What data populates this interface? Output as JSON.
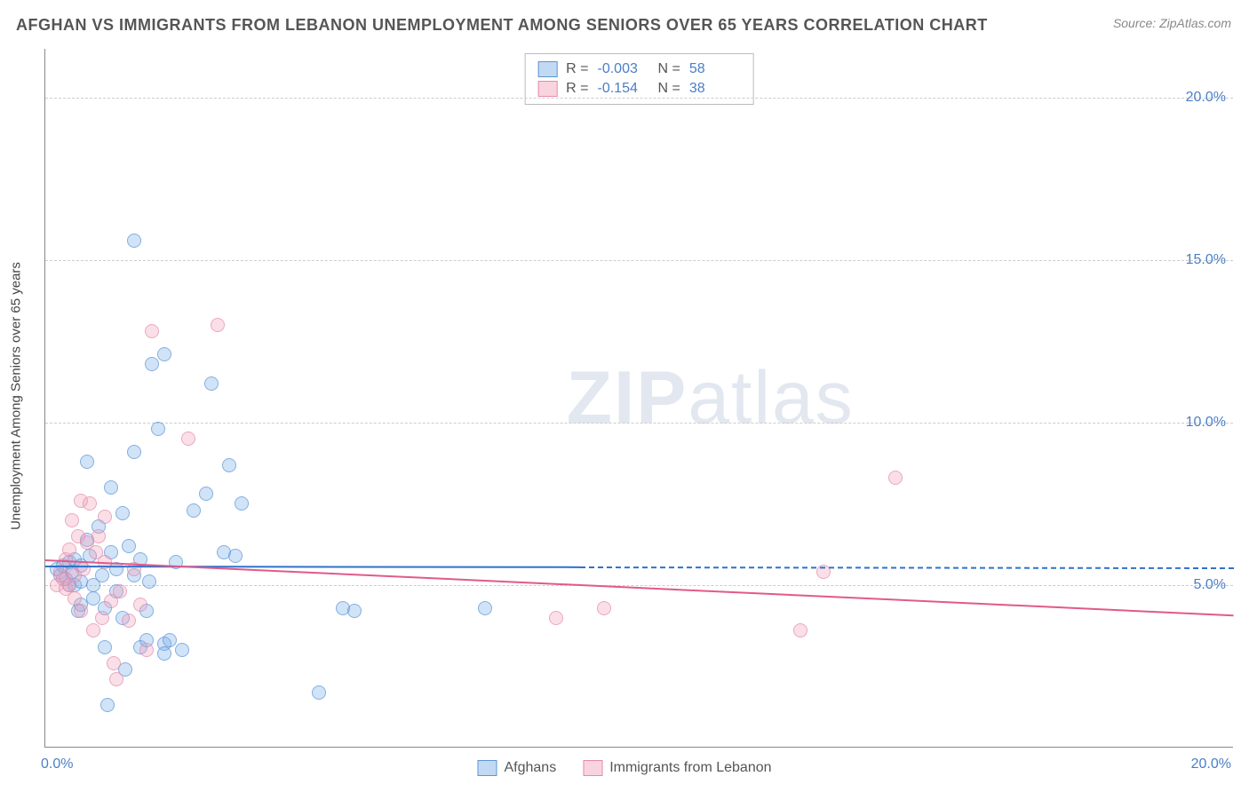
{
  "title": "AFGHAN VS IMMIGRANTS FROM LEBANON UNEMPLOYMENT AMONG SENIORS OVER 65 YEARS CORRELATION CHART",
  "source": "Source: ZipAtlas.com",
  "watermark": {
    "zip": "ZIP",
    "atlas": "atlas"
  },
  "chart": {
    "type": "scatter",
    "yaxis_label": "Unemployment Among Seniors over 65 years",
    "xlim": [
      0,
      20
    ],
    "ylim": [
      0,
      21.5
    ],
    "background_color": "#ffffff",
    "grid_color": "#cccccc",
    "axis_color": "#888888",
    "yticks": [
      {
        "v": 5,
        "label": "5.0%"
      },
      {
        "v": 10,
        "label": "10.0%"
      },
      {
        "v": 15,
        "label": "15.0%"
      },
      {
        "v": 20,
        "label": "20.0%"
      }
    ],
    "xticks": [
      {
        "v": 0,
        "label": "0.0%",
        "align": "left"
      },
      {
        "v": 20,
        "label": "20.0%",
        "align": "right"
      }
    ],
    "series": [
      {
        "name": "Afghans",
        "color_fill": "rgba(120,170,230,0.45)",
        "color_stroke": "#5b95d6",
        "trend_color": "#2f72c9",
        "R": "-0.003",
        "N": "58",
        "trend": {
          "y_at_x0": 5.6,
          "y_at_xmax": 5.55,
          "solid_until_x": 9.0
        },
        "points": [
          [
            0.2,
            5.5
          ],
          [
            0.25,
            5.3
          ],
          [
            0.3,
            5.6
          ],
          [
            0.35,
            5.2
          ],
          [
            0.4,
            5.0
          ],
          [
            0.4,
            5.7
          ],
          [
            0.45,
            5.4
          ],
          [
            0.5,
            5.0
          ],
          [
            0.5,
            5.8
          ],
          [
            0.55,
            4.2
          ],
          [
            0.6,
            5.1
          ],
          [
            0.6,
            4.4
          ],
          [
            0.6,
            5.6
          ],
          [
            0.7,
            6.4
          ],
          [
            0.7,
            8.8
          ],
          [
            0.75,
            5.9
          ],
          [
            0.8,
            5.0
          ],
          [
            0.8,
            4.6
          ],
          [
            0.9,
            6.8
          ],
          [
            0.95,
            5.3
          ],
          [
            1.0,
            4.3
          ],
          [
            1.0,
            3.1
          ],
          [
            1.05,
            1.3
          ],
          [
            1.1,
            8.0
          ],
          [
            1.1,
            6.0
          ],
          [
            1.2,
            4.8
          ],
          [
            1.2,
            5.5
          ],
          [
            1.3,
            7.2
          ],
          [
            1.3,
            4.0
          ],
          [
            1.35,
            2.4
          ],
          [
            1.4,
            6.2
          ],
          [
            1.5,
            9.1
          ],
          [
            1.5,
            15.6
          ],
          [
            1.5,
            5.3
          ],
          [
            1.6,
            5.8
          ],
          [
            1.6,
            3.1
          ],
          [
            1.7,
            3.3
          ],
          [
            1.7,
            4.2
          ],
          [
            1.75,
            5.1
          ],
          [
            1.8,
            11.8
          ],
          [
            1.9,
            9.8
          ],
          [
            2.0,
            3.2
          ],
          [
            2.0,
            2.9
          ],
          [
            2.0,
            12.1
          ],
          [
            2.1,
            3.3
          ],
          [
            2.2,
            5.7
          ],
          [
            2.3,
            3.0
          ],
          [
            2.5,
            7.3
          ],
          [
            2.7,
            7.8
          ],
          [
            2.8,
            11.2
          ],
          [
            3.0,
            6.0
          ],
          [
            3.1,
            8.7
          ],
          [
            3.2,
            5.9
          ],
          [
            3.3,
            7.5
          ],
          [
            4.6,
            1.7
          ],
          [
            5.0,
            4.3
          ],
          [
            5.2,
            4.2
          ],
          [
            7.4,
            4.3
          ]
        ]
      },
      {
        "name": "Immigrants from Lebanon",
        "color_fill": "rgba(240,160,185,0.45)",
        "color_stroke": "#e58aac",
        "trend_color": "#e05a8a",
        "R": "-0.154",
        "N": "38",
        "trend": {
          "y_at_x0": 5.8,
          "y_at_xmax": 4.1,
          "solid_until_x": 20.0
        },
        "points": [
          [
            0.2,
            5.0
          ],
          [
            0.25,
            5.4
          ],
          [
            0.3,
            5.2
          ],
          [
            0.35,
            5.8
          ],
          [
            0.35,
            4.9
          ],
          [
            0.4,
            6.1
          ],
          [
            0.4,
            5.0
          ],
          [
            0.45,
            7.0
          ],
          [
            0.5,
            5.3
          ],
          [
            0.5,
            4.6
          ],
          [
            0.55,
            6.5
          ],
          [
            0.6,
            4.2
          ],
          [
            0.6,
            7.6
          ],
          [
            0.65,
            5.5
          ],
          [
            0.7,
            6.3
          ],
          [
            0.75,
            7.5
          ],
          [
            0.8,
            3.6
          ],
          [
            0.85,
            6.0
          ],
          [
            0.9,
            6.5
          ],
          [
            0.95,
            4.0
          ],
          [
            1.0,
            7.1
          ],
          [
            1.0,
            5.7
          ],
          [
            1.1,
            4.5
          ],
          [
            1.15,
            2.6
          ],
          [
            1.2,
            2.1
          ],
          [
            1.25,
            4.8
          ],
          [
            1.4,
            3.9
          ],
          [
            1.5,
            5.5
          ],
          [
            1.6,
            4.4
          ],
          [
            1.7,
            3.0
          ],
          [
            1.8,
            12.8
          ],
          [
            2.4,
            9.5
          ],
          [
            2.9,
            13.0
          ],
          [
            8.6,
            4.0
          ],
          [
            9.4,
            4.3
          ],
          [
            12.7,
            3.6
          ],
          [
            13.1,
            5.4
          ],
          [
            14.3,
            8.3
          ]
        ]
      }
    ]
  }
}
